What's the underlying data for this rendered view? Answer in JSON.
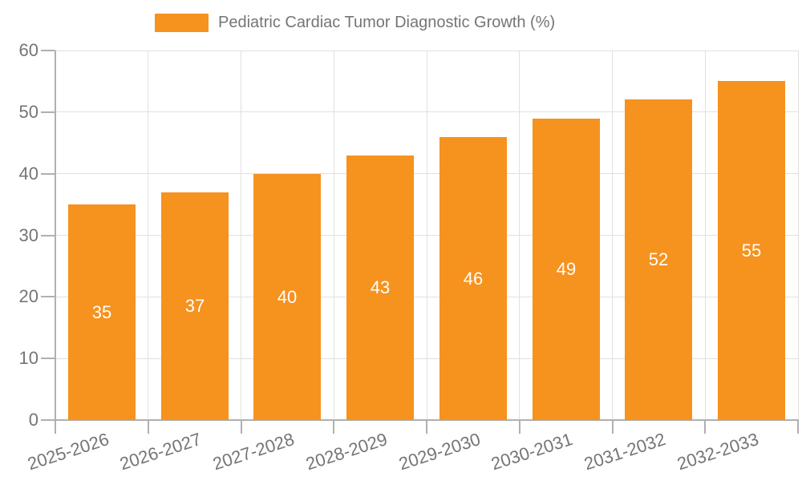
{
  "chart_data": {
    "type": "bar",
    "title": "Pediatric Cardiac Tumor Diagnostic Growth (%)",
    "legend": [
      "Pediatric Cardiac Tumor Diagnostic Growth (%)"
    ],
    "legend_position": "top-center",
    "categories": [
      "2025-2026",
      "2026-2027",
      "2027-2028",
      "2028-2029",
      "2029-2030",
      "2030-2031",
      "2031-2032",
      "2032-2033"
    ],
    "values": [
      35,
      37,
      40,
      43,
      46,
      49,
      52,
      55
    ],
    "xlabel": "",
    "ylabel": "",
    "ylim": [
      0,
      60
    ],
    "yticks": [
      0,
      10,
      20,
      30,
      40,
      50,
      60
    ],
    "grid": true,
    "x_label_rotation_deg": -18,
    "bar_label_position": "inside-middle"
  },
  "style": {
    "bar_color": "#f6921e",
    "bar_label_color": "#ffffff",
    "axis_color": "#b0b0b0",
    "grid_color": "#e0e0e0",
    "text_color": "#757575",
    "background": "#ffffff"
  }
}
